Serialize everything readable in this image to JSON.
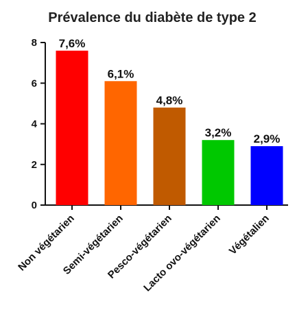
{
  "chart_data": {
    "type": "bar",
    "title": "Prévalence du diabète de type 2",
    "xlabel": "",
    "ylabel": "",
    "ylim": [
      0,
      8
    ],
    "yticks": [
      0,
      2,
      4,
      6,
      8
    ],
    "grid": false,
    "categories": [
      "Non végétarien",
      "Semi-végétarien",
      "Pesco-végétarien",
      "Lacto ovo-végétarien",
      "Végétalien"
    ],
    "values": [
      7.6,
      6.1,
      4.8,
      3.2,
      2.9
    ],
    "value_labels": [
      "7,6%",
      "6,1%",
      "4,8%",
      "3,2%",
      "2,9%"
    ],
    "colors": [
      "#ff0000",
      "#ff6600",
      "#c05a00",
      "#00c800",
      "#0000ff"
    ]
  }
}
